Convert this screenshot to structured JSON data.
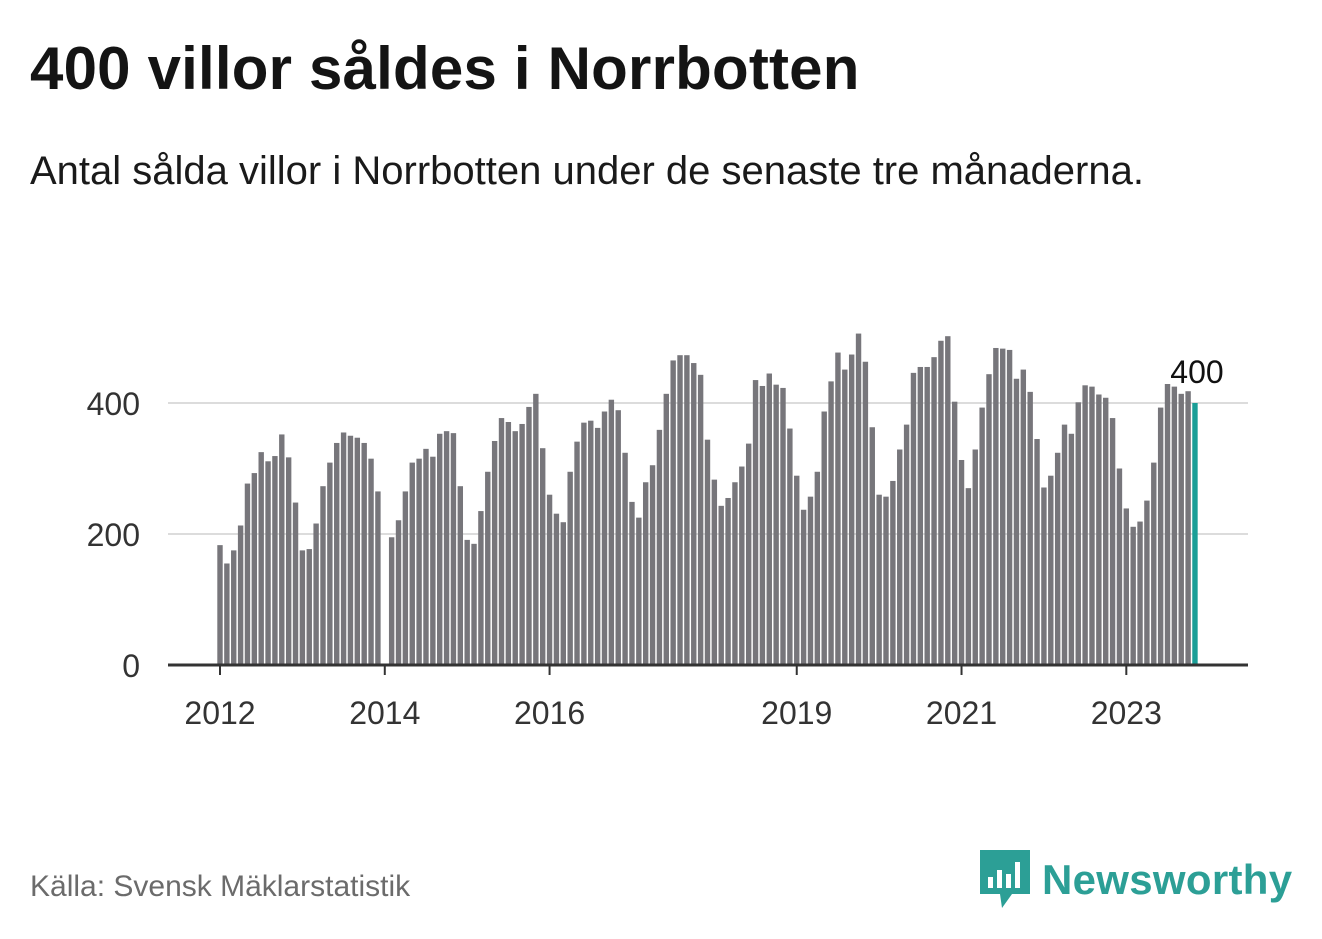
{
  "title": "400 villor såldes i Norrbotten",
  "subtitle": "Antal sålda villor i Norrbotten under de senaste tre månaderna.",
  "source": "Källa: Svensk Mäklarstatistik",
  "logo": {
    "text": "Newsworthy",
    "icon": "bar-chart-pin-icon"
  },
  "colors": {
    "bar": "#77767b",
    "highlight": "#1a9e97",
    "grid": "#dcdcdc",
    "axis": "#333333",
    "brand": "#2c9f96"
  },
  "chart_data": {
    "type": "bar",
    "title": "400 villor såldes i Norrbotten",
    "xlabel": "",
    "ylabel": "",
    "ylim": [
      0,
      520
    ],
    "yticks": [
      0,
      200,
      400
    ],
    "ytick_labels": [
      "0",
      "200",
      "400"
    ],
    "xtick_labels": [
      "2012",
      "2014",
      "2016",
      "2019",
      "2021",
      "2023"
    ],
    "xtick_index": [
      0,
      24,
      48,
      84,
      108,
      132
    ],
    "start": "2012-01",
    "values": [
      183,
      155,
      175,
      213,
      277,
      293,
      325,
      311,
      319,
      352,
      317,
      248,
      175,
      177,
      216,
      273,
      309,
      339,
      355,
      350,
      347,
      339,
      315,
      265,
      0,
      195,
      221,
      265,
      309,
      315,
      330,
      318,
      353,
      357,
      354,
      273,
      191,
      185,
      235,
      295,
      342,
      377,
      371,
      357,
      368,
      394,
      414,
      331,
      260,
      231,
      218,
      295,
      341,
      370,
      373,
      362,
      387,
      405,
      389,
      324,
      249,
      225,
      279,
      305,
      359,
      414,
      465,
      473,
      473,
      461,
      443,
      344,
      283,
      243,
      255,
      279,
      303,
      338,
      435,
      426,
      445,
      428,
      423,
      361,
      289,
      237,
      257,
      295,
      387,
      433,
      477,
      451,
      474,
      506,
      463,
      363,
      260,
      257,
      281,
      329,
      367,
      446,
      455,
      455,
      470,
      495,
      502,
      402,
      313,
      270,
      329,
      393,
      444,
      484,
      483,
      481,
      437,
      451,
      417,
      345,
      271,
      289,
      324,
      367,
      353,
      401,
      427,
      425,
      413,
      408,
      377,
      300,
      239,
      211,
      219,
      251,
      309,
      393,
      429,
      425,
      414,
      418,
      400
    ],
    "highlight_last": true,
    "last_value_label": "400",
    "grid": true
  }
}
